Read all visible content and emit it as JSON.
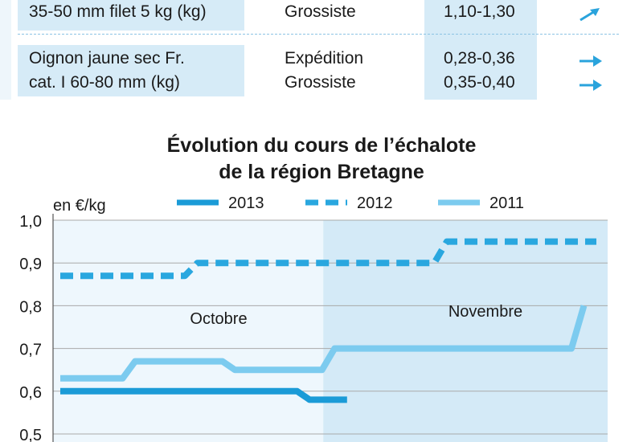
{
  "table": {
    "rows": [
      {
        "product_lines": [
          "35-50 mm filet 5 kg (kg)"
        ],
        "stages": [
          "Grossiste"
        ],
        "prices": [
          "1,10-1,30"
        ],
        "trends": [
          "up"
        ]
      },
      {
        "product_lines": [
          "Oignon jaune sec Fr.",
          "cat. I 60-80 mm (kg)"
        ],
        "stages": [
          "Expédition",
          "Grossiste"
        ],
        "prices": [
          "0,28-0,36",
          "0,35-0,40"
        ],
        "trends": [
          "flat",
          "flat"
        ]
      }
    ],
    "accent_color": "#29a3dc"
  },
  "chart_data": {
    "type": "line",
    "title_lines": [
      "Évolution du cours de l’échalote",
      "de la région Bretagne"
    ],
    "ylabel": "en €/kg",
    "ylim": [
      0.5,
      1.0
    ],
    "y_ticks": [
      "1,0",
      "0,9",
      "0,8",
      "0,7",
      "0,6",
      "0,5"
    ],
    "x_days": [
      1,
      44
    ],
    "period_labels": [
      "Octobre",
      "Novembre"
    ],
    "november_start_day": 23,
    "series": [
      {
        "name": "2013",
        "style": "solid",
        "color": "#1b9bd7",
        "points": [
          [
            1,
            0.6
          ],
          [
            20,
            0.6
          ],
          [
            21,
            0.58
          ],
          [
            24,
            0.58
          ]
        ]
      },
      {
        "name": "2012",
        "style": "dashed",
        "color": "#29a7df",
        "points": [
          [
            1,
            0.87
          ],
          [
            11,
            0.87
          ],
          [
            12,
            0.9
          ],
          [
            31,
            0.9
          ],
          [
            32,
            0.95
          ],
          [
            44,
            0.95
          ]
        ]
      },
      {
        "name": "2011",
        "style": "light",
        "color": "#7ccbef",
        "points": [
          [
            1,
            0.63
          ],
          [
            6,
            0.63
          ],
          [
            7,
            0.67
          ],
          [
            14,
            0.67
          ],
          [
            15,
            0.65
          ],
          [
            22,
            0.65
          ],
          [
            23,
            0.7
          ],
          [
            42,
            0.7
          ],
          [
            43,
            0.8
          ]
        ]
      }
    ]
  }
}
